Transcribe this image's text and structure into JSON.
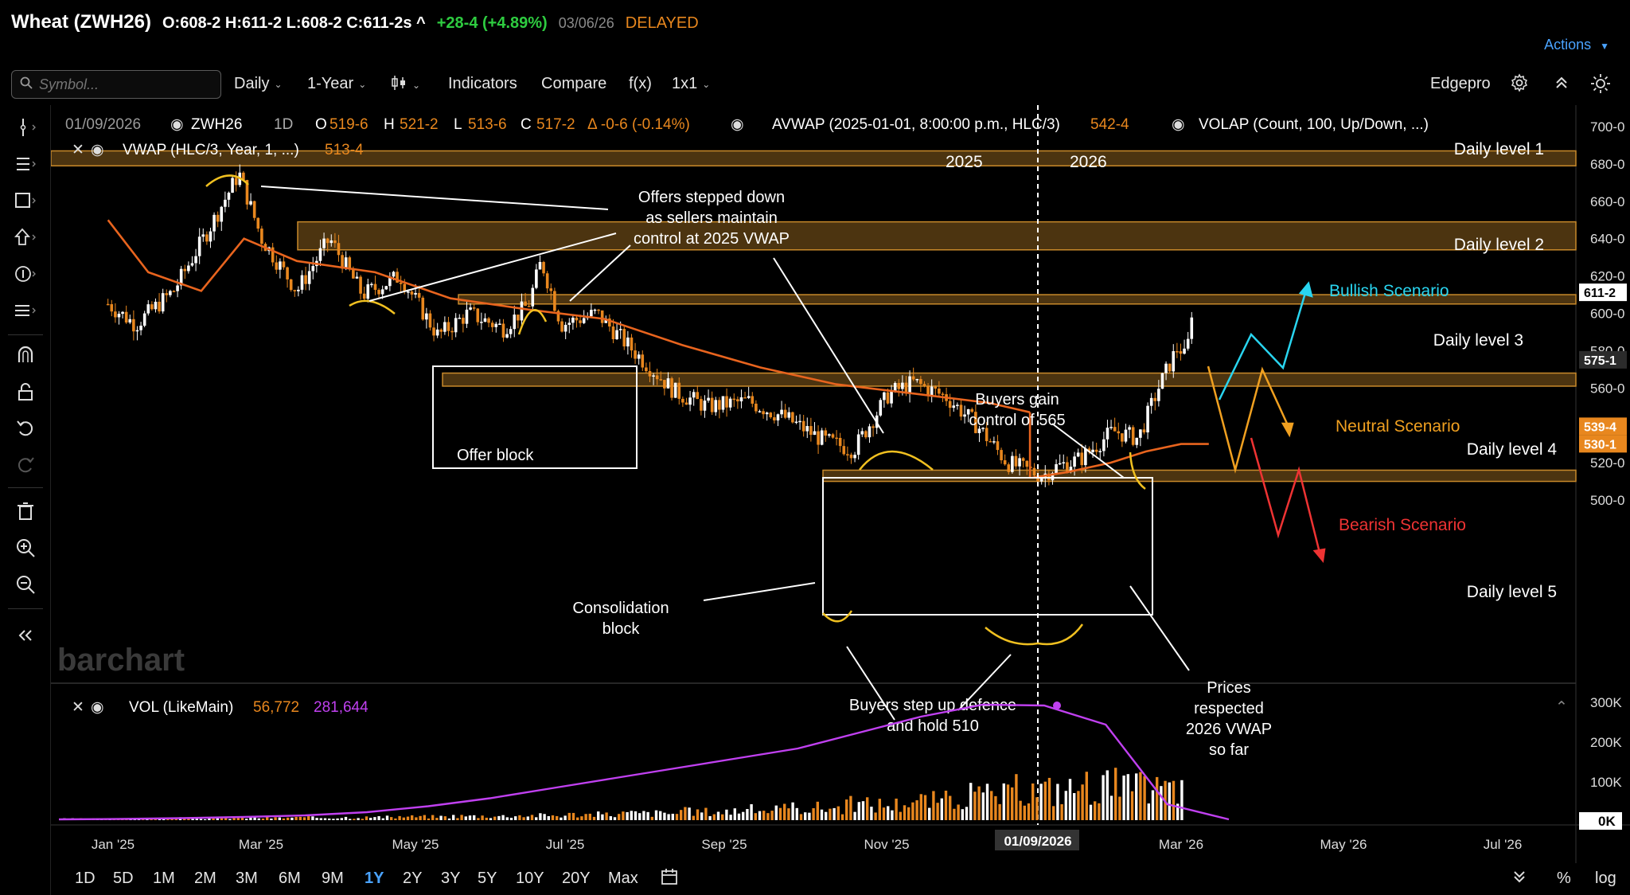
{
  "header": {
    "name": "Wheat (ZWH26)",
    "ohlc": "O:608-2 H:611-2 L:608-2 C:611-2s ^",
    "change": "+28-4 (+4.89%)",
    "date": "03/06/26",
    "delayed": "DELAYED",
    "actions": "Actions"
  },
  "toolbar": {
    "search_placeholder": "Symbol...",
    "interval": "Daily",
    "period": "1-Year",
    "indicators": "Indicators",
    "compare": "Compare",
    "fx": "f(x)",
    "layout": "1x1",
    "profile": "Edgepro"
  },
  "legend": {
    "date": "01/09/2026",
    "symbol": "ZWH26",
    "tf": "1D",
    "o_label": "O",
    "o": "519-6",
    "h_label": "H",
    "h": "521-2",
    "l_label": "L",
    "l": "513-6",
    "c_label": "C",
    "c": "517-2",
    "delta": "Δ -0-6 (-0.14%)",
    "avwap": "AVWAP (2025-01-01, 8:00:00 p.m., HLC/3)",
    "avwap_val": "542-4",
    "volap": "VOLAP (Count, 100, Up/Down, ...)",
    "vwap": "VWAP (HLC/3, Year, 1, ...)",
    "vwap_val": "513-4",
    "vol": "VOL (LikeMain)",
    "vol_val1": "56,772",
    "vol_val2": "281,644"
  },
  "annotations": {
    "year_2025": "2025",
    "year_2026": "2026",
    "daily1": "Daily level 1",
    "daily2": "Daily level 2",
    "daily3": "Daily level 3",
    "daily4": "Daily level 4",
    "daily5": "Daily level 5",
    "bullish": "Bullish Scenario",
    "neutral": "Neutral Scenario",
    "bearish": "Bearish Scenario",
    "offers": [
      "Offers stepped down",
      "as sellers maintain",
      "control at 2025 VWAP"
    ],
    "offer_block": "Offer block",
    "buyers_gain": [
      "Buyers gain",
      "control of 565"
    ],
    "consolidation": [
      "Consolidation",
      "block"
    ],
    "buyers_step": [
      "Buyers step up defence",
      "and hold 510"
    ],
    "prices_respected": [
      "Prices",
      "respected",
      "2026 VWAP",
      "so far"
    ],
    "watermark": "barchart",
    "crosshair_date": "01/09/2026"
  },
  "price_axis": {
    "ticks": [
      "700-0",
      "680-0",
      "660-0",
      "640-0",
      "620-0",
      "600-0",
      "580-0",
      "560-0",
      "540-0",
      "520-0",
      "500-0"
    ],
    "tags": [
      {
        "label": "611-2",
        "price": 611.25,
        "bg": "#ffffff",
        "fg": "#000000"
      },
      {
        "label": "575-1",
        "price": 575.125,
        "bg": "#2b2b2b",
        "fg": "#ffffff"
      },
      {
        "label": "539-4",
        "price": 539.5,
        "bg": "#e8871e",
        "fg": "#ffffff"
      },
      {
        "label": "530-1",
        "price": 530.125,
        "bg": "#e8871e",
        "fg": "#ffffff"
      }
    ]
  },
  "vol_axis": {
    "ticks": [
      "300K",
      "200K",
      "100K",
      "0K"
    ]
  },
  "time_axis": {
    "ticks": [
      "Jan '25",
      "Mar '25",
      "May '25",
      "Jul '25",
      "Sep '25",
      "Nov '25",
      "Mar '26",
      "May '26",
      "Jul '26"
    ]
  },
  "ranges": [
    "1D",
    "5D",
    "1M",
    "2M",
    "3M",
    "6M",
    "9M",
    "1Y",
    "2Y",
    "3Y",
    "5Y",
    "10Y",
    "20Y",
    "Max"
  ],
  "active_range": "1Y",
  "bottom_right": {
    "pct": "%",
    "log": "log"
  },
  "colors": {
    "up": "#ffffff",
    "down": "#e8871e",
    "vwap": "#e8641e",
    "zone": "#c8892a",
    "volap": "#c040f0",
    "bullish": "#29d5f0",
    "neutral": "#f0a020",
    "bearish": "#ee3333",
    "accent": "#4aa3ff"
  },
  "chart_data": {
    "type": "candlestick",
    "title": "Wheat (ZWH26)",
    "ylim": [
      495,
      705
    ],
    "price_path": [
      {
        "x": "2024-12-30",
        "y": 605
      },
      {
        "x": "2025-01-10",
        "y": 594
      },
      {
        "x": "2025-01-25",
        "y": 612
      },
      {
        "x": "2025-02-08",
        "y": 645
      },
      {
        "x": "2025-02-20",
        "y": 675
      },
      {
        "x": "2025-03-01",
        "y": 640
      },
      {
        "x": "2025-03-15",
        "y": 612
      },
      {
        "x": "2025-03-28",
        "y": 640
      },
      {
        "x": "2025-04-10",
        "y": 610
      },
      {
        "x": "2025-04-25",
        "y": 620
      },
      {
        "x": "2025-05-10",
        "y": 588
      },
      {
        "x": "2025-05-22",
        "y": 600
      },
      {
        "x": "2025-06-05",
        "y": 592
      },
      {
        "x": "2025-06-15",
        "y": 605
      },
      {
        "x": "2025-06-20",
        "y": 628
      },
      {
        "x": "2025-06-28",
        "y": 594
      },
      {
        "x": "2025-07-12",
        "y": 600
      },
      {
        "x": "2025-07-28",
        "y": 578
      },
      {
        "x": "2025-08-12",
        "y": 558
      },
      {
        "x": "2025-08-25",
        "y": 550
      },
      {
        "x": "2025-09-10",
        "y": 553
      },
      {
        "x": "2025-09-25",
        "y": 544
      },
      {
        "x": "2025-10-10",
        "y": 532
      },
      {
        "x": "2025-10-22",
        "y": 527
      },
      {
        "x": "2025-11-05",
        "y": 557
      },
      {
        "x": "2025-11-15",
        "y": 563
      },
      {
        "x": "2025-11-28",
        "y": 555
      },
      {
        "x": "2025-12-10",
        "y": 540
      },
      {
        "x": "2025-12-22",
        "y": 520
      },
      {
        "x": "2026-01-05",
        "y": 513
      },
      {
        "x": "2026-01-09",
        "y": 517
      },
      {
        "x": "2026-01-20",
        "y": 522
      },
      {
        "x": "2026-02-02",
        "y": 537
      },
      {
        "x": "2026-02-12",
        "y": 533
      },
      {
        "x": "2026-02-20",
        "y": 560
      },
      {
        "x": "2026-02-28",
        "y": 583
      },
      {
        "x": "2026-03-03",
        "y": 575
      },
      {
        "x": "2026-03-06",
        "y": 611
      }
    ],
    "vwap_2025": [
      {
        "x": "2024-12-30",
        "y": 650
      },
      {
        "x": "2025-01-15",
        "y": 622
      },
      {
        "x": "2025-02-05",
        "y": 612
      },
      {
        "x": "2025-02-22",
        "y": 640
      },
      {
        "x": "2025-03-15",
        "y": 628
      },
      {
        "x": "2025-04-15",
        "y": 622
      },
      {
        "x": "2025-05-15",
        "y": 608
      },
      {
        "x": "2025-06-15",
        "y": 602
      },
      {
        "x": "2025-07-15",
        "y": 597
      },
      {
        "x": "2025-08-15",
        "y": 583
      },
      {
        "x": "2025-09-15",
        "y": 571
      },
      {
        "x": "2025-10-15",
        "y": 562
      },
      {
        "x": "2025-11-15",
        "y": 557
      },
      {
        "x": "2025-12-15",
        "y": 552
      },
      {
        "x": "2025-12-31",
        "y": 547
      }
    ],
    "vwap_2026": [
      {
        "x": "2026-01-01",
        "y": 512
      },
      {
        "x": "2026-01-15",
        "y": 515
      },
      {
        "x": "2026-02-01",
        "y": 520
      },
      {
        "x": "2026-02-15",
        "y": 526
      },
      {
        "x": "2026-03-01",
        "y": 530
      },
      {
        "x": "2026-03-12",
        "y": 530
      }
    ],
    "levels": [
      {
        "name": "Daily level 1",
        "low": 679,
        "high": 687
      },
      {
        "name": "Daily level 2",
        "low": 634,
        "high": 649
      },
      {
        "name": "Daily level 3",
        "low": 605,
        "high": 610
      },
      {
        "name": "Daily level 4",
        "low": 561,
        "high": 568
      },
      {
        "name": "Daily level 5",
        "low": 510,
        "high": 516
      }
    ],
    "volume_bars_k": [
      4,
      5,
      6,
      7,
      8,
      9,
      11,
      13,
      15,
      18,
      22,
      27,
      33,
      40,
      50,
      62,
      78,
      95,
      110,
      100
    ],
    "volap_k": [
      2,
      3,
      5,
      8,
      12,
      20,
      35,
      55,
      80,
      105,
      130,
      155,
      180,
      220,
      260,
      290,
      288,
      240,
      40,
      2
    ]
  }
}
